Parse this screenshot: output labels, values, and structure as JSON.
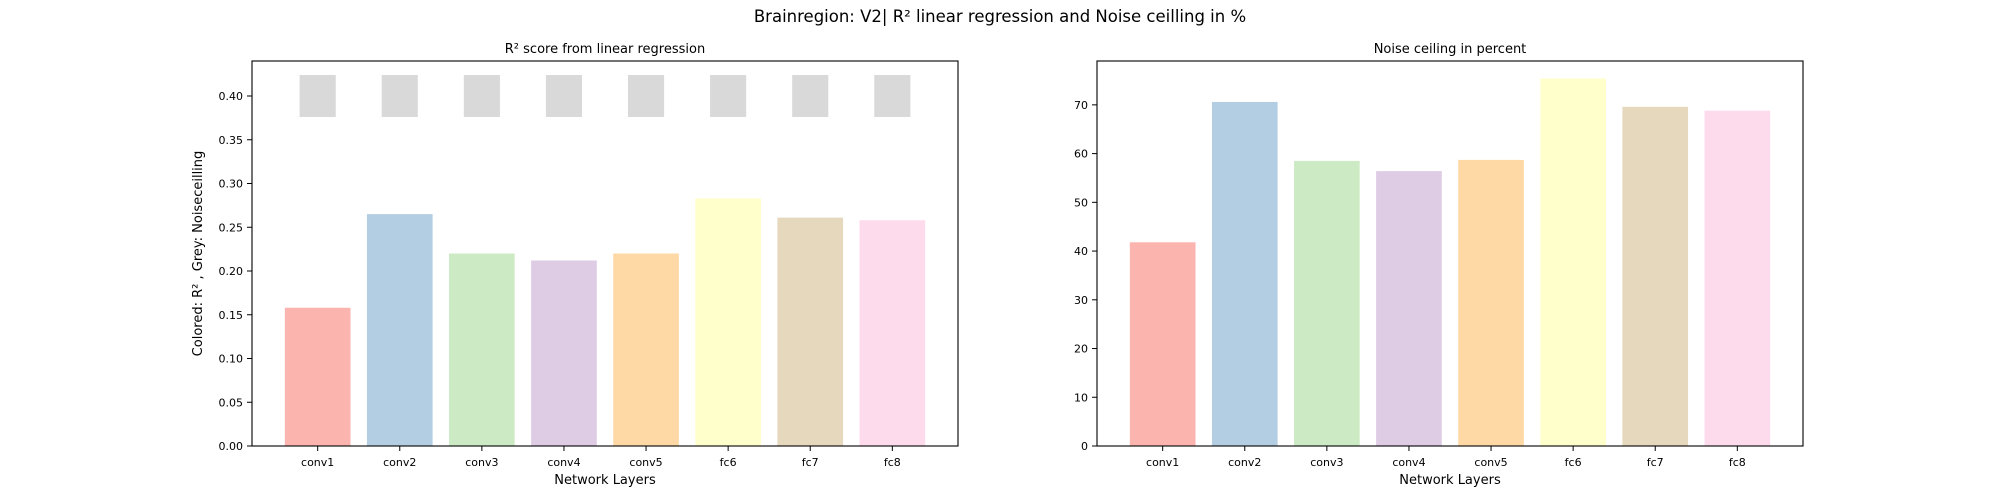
{
  "suptitle": "Brainregion: V2| R² linear regression and Noise ceilling in %",
  "colors": {
    "bars": [
      "#fbb4ae",
      "#b3cde3",
      "#ccebc5",
      "#decbe4",
      "#fed9a6",
      "#ffffcc",
      "#e5d8bd",
      "#fddaec"
    ],
    "noise_ceiling_marker": "#d9d9d9"
  },
  "chart_data": [
    {
      "type": "bar",
      "title": "R² score from linear regression",
      "xlabel": "Network Layers",
      "ylabel": "Colored: R² , Grey: Noiseceilling",
      "categories": [
        "conv1",
        "conv2",
        "conv3",
        "conv4",
        "conv5",
        "fc6",
        "fc7",
        "fc8"
      ],
      "values": [
        0.158,
        0.265,
        0.22,
        0.212,
        0.22,
        0.283,
        0.261,
        0.258
      ],
      "noise_ceiling_marker": {
        "low": 0.376,
        "high": 0.424
      },
      "ylim": [
        0,
        0.44
      ],
      "yticks": [
        0.0,
        0.05,
        0.1,
        0.15,
        0.2,
        0.25,
        0.3,
        0.35,
        0.4
      ],
      "ytick_labels": [
        "0.00",
        "0.05",
        "0.10",
        "0.15",
        "0.20",
        "0.25",
        "0.30",
        "0.35",
        "0.40"
      ],
      "grid": false
    },
    {
      "type": "bar",
      "title": "Noise ceiling in percent",
      "xlabel": "Network Layers",
      "ylabel": "",
      "categories": [
        "conv1",
        "conv2",
        "conv3",
        "conv4",
        "conv5",
        "fc6",
        "fc7",
        "fc8"
      ],
      "values": [
        41.8,
        70.6,
        58.5,
        56.4,
        58.7,
        75.4,
        69.6,
        68.8
      ],
      "ylim": [
        0,
        79
      ],
      "yticks": [
        0,
        10,
        20,
        30,
        40,
        50,
        60,
        70
      ],
      "ytick_labels": [
        "0",
        "10",
        "20",
        "30",
        "40",
        "50",
        "60",
        "70"
      ],
      "grid": false
    }
  ]
}
